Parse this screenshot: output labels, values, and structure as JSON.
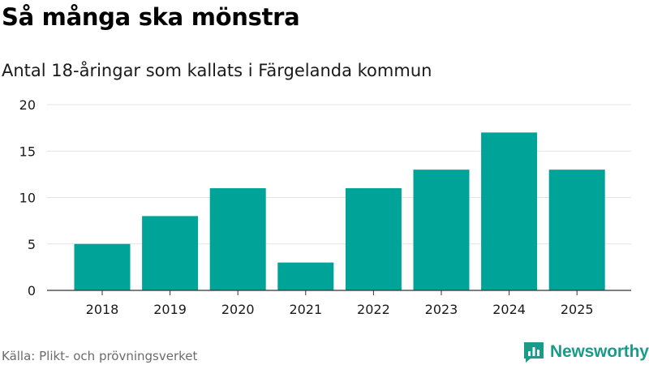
{
  "header": {
    "title": "Så många ska mönstra",
    "subtitle": "Antal 18-åringar som kallats i Färgelanda kommun"
  },
  "footer": {
    "source": "Källa: Plikt- och prövningsverket",
    "brand": "Newsworthy",
    "brand_icon": "newsworthy-logo-icon"
  },
  "colors": {
    "bar": "#00A398",
    "grid": "#e3e3e3",
    "axis": "#333333",
    "brand": "#1a9b8a"
  },
  "chart_data": {
    "type": "bar",
    "categories": [
      "2018",
      "2019",
      "2020",
      "2021",
      "2022",
      "2023",
      "2024",
      "2025"
    ],
    "values": [
      5,
      8,
      11,
      3,
      11,
      13,
      17,
      13
    ],
    "ylim": [
      0,
      20
    ],
    "yticks": [
      0,
      5,
      10,
      15,
      20
    ],
    "grid": true,
    "legend": "none"
  }
}
